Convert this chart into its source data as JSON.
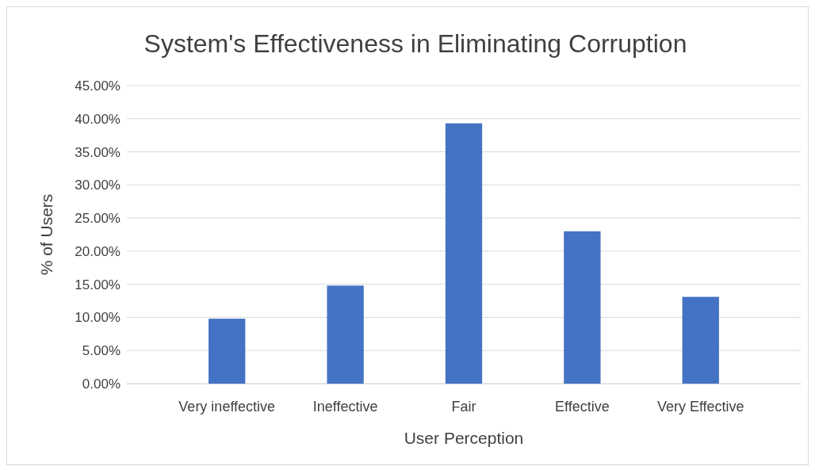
{
  "chart_data": {
    "type": "bar",
    "title": "System's Effectiveness in Eliminating Corruption",
    "xlabel": "User Perception",
    "ylabel": "% of Users",
    "categories": [
      "Very ineffective",
      "Ineffective",
      "Fair",
      "Effective",
      "Very Effective"
    ],
    "values": [
      9.8,
      14.8,
      39.3,
      23.0,
      13.1
    ],
    "color": "#4472c4",
    "ylim": [
      0,
      45
    ],
    "yticks": [
      {
        "value": 0,
        "label": "0.00%"
      },
      {
        "value": 5,
        "label": "5.00%"
      },
      {
        "value": 10,
        "label": "10.00%"
      },
      {
        "value": 15,
        "label": "15.00%"
      },
      {
        "value": 20,
        "label": "20.00%"
      },
      {
        "value": 25,
        "label": "25.00%"
      },
      {
        "value": 30,
        "label": "30.00%"
      },
      {
        "value": 35,
        "label": "35.00%"
      },
      {
        "value": 40,
        "label": "40.00%"
      },
      {
        "value": 45,
        "label": "45.00%"
      }
    ],
    "grid": "y"
  }
}
